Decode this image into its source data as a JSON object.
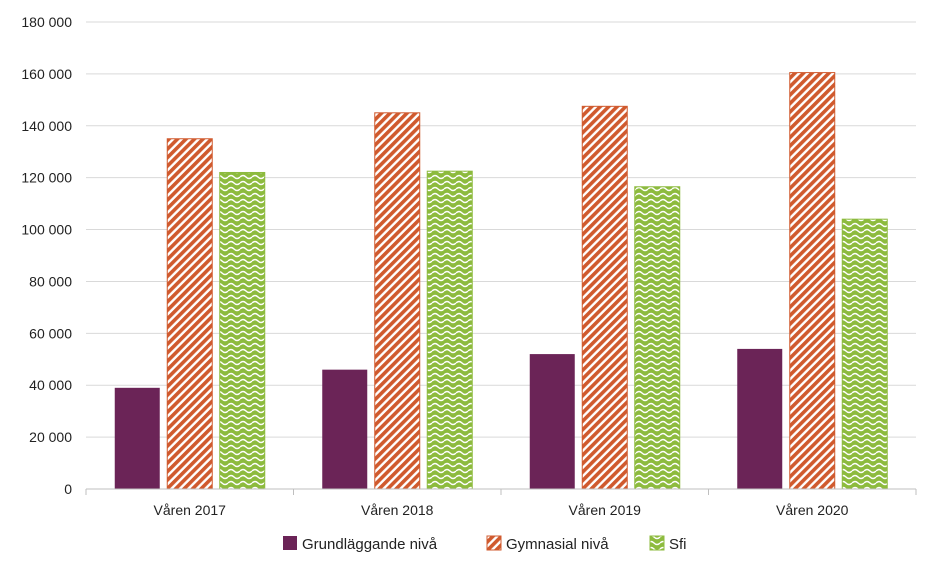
{
  "chart_data": {
    "type": "bar",
    "title": "",
    "xlabel": "",
    "ylabel": "",
    "categories": [
      "Våren 2017",
      "Våren 2018",
      "Våren 2019",
      "Våren 2020"
    ],
    "series": [
      {
        "name": "Grundläggande nivå",
        "values": [
          39000,
          46000,
          52000,
          54000
        ],
        "color": "#6b2457",
        "pattern": "solid"
      },
      {
        "name": "Gymnasial nivå",
        "values": [
          135000,
          145000,
          147500,
          160500
        ],
        "color": "#d05a2e",
        "pattern": "diagonal-stripes"
      },
      {
        "name": "Sfi",
        "values": [
          122000,
          122500,
          116500,
          104000
        ],
        "color": "#8dbb3e",
        "pattern": "wave"
      }
    ],
    "ylim": [
      0,
      180000
    ],
    "yticks": [
      0,
      20000,
      40000,
      60000,
      80000,
      100000,
      120000,
      140000,
      160000,
      180000
    ],
    "ytick_labels": [
      "0",
      "20 000",
      "40 000",
      "60 000",
      "80 000",
      "100 000",
      "120 000",
      "140 000",
      "160 000",
      "180 000"
    ],
    "grid": true,
    "legend_position": "bottom"
  }
}
